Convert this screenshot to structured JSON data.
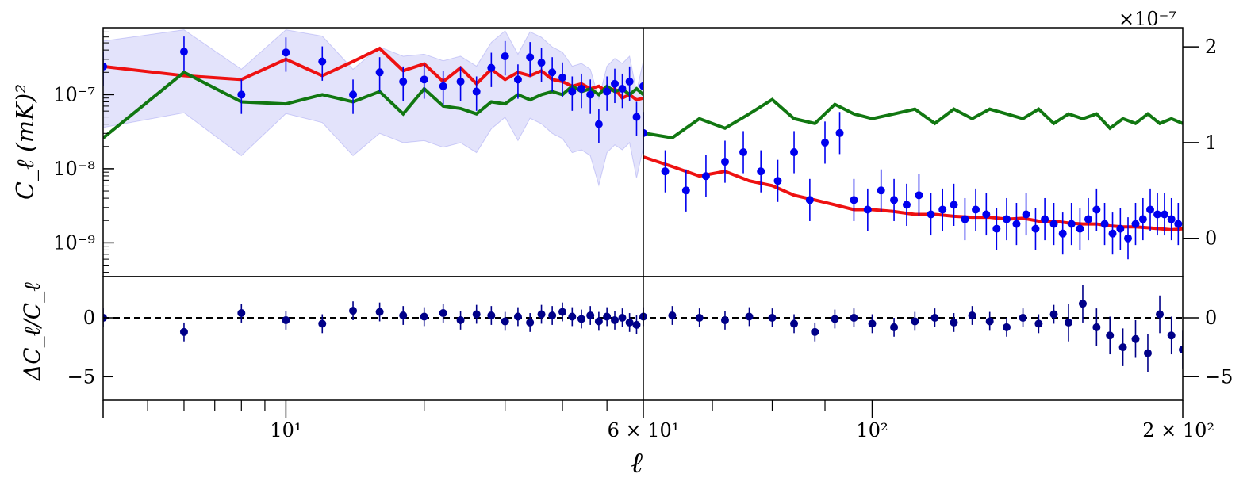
{
  "chart_data": [
    {
      "panel": "top-left",
      "type": "line",
      "yscale": "log",
      "xscale": "log",
      "ylabel": "C_ℓ (mK)²",
      "xlim": [
        4,
        60
      ],
      "ylim": [
        3.5e-10,
        8e-07
      ],
      "y_ticks": [
        {
          "value": 1e-09,
          "label": "10⁻⁹"
        },
        {
          "value": 1e-08,
          "label": "10⁻⁸"
        },
        {
          "value": 1e-07,
          "label": "10⁻⁷"
        }
      ],
      "band_color": "#8080ee",
      "series": [
        {
          "id": "red",
          "color": "#ee1111",
          "x": [
            4,
            6,
            8,
            10,
            12,
            14,
            16,
            18,
            20,
            22,
            24,
            26,
            28,
            30,
            32,
            34,
            36,
            38,
            40,
            42,
            44,
            46,
            48,
            50,
            52,
            54,
            56,
            58,
            60
          ],
          "y": [
            2.4e-07,
            1.8e-07,
            1.6e-07,
            3e-07,
            1.8e-07,
            2.8e-07,
            4.2e-07,
            2.1e-07,
            2.6e-07,
            1.5e-07,
            2.3e-07,
            1.4e-07,
            2.2e-07,
            1.6e-07,
            2e-07,
            1.8e-07,
            2.1e-07,
            1.6e-07,
            1.5e-07,
            1.3e-07,
            1.4e-07,
            1.2e-07,
            1.3e-07,
            1.1e-07,
            1.2e-07,
            9e-08,
            1e-07,
            8.5e-08,
            9e-08
          ]
        },
        {
          "id": "green",
          "color": "#117711",
          "x": [
            4,
            6,
            8,
            10,
            12,
            14,
            16,
            18,
            20,
            22,
            24,
            26,
            28,
            30,
            32,
            34,
            36,
            38,
            40,
            42,
            44,
            46,
            48,
            50,
            52,
            54,
            56,
            58,
            60
          ],
          "y": [
            2.6e-08,
            2e-07,
            8e-08,
            7.5e-08,
            1e-07,
            8e-08,
            1.1e-07,
            5.5e-08,
            1.2e-07,
            7e-08,
            6.5e-08,
            5.5e-08,
            8e-08,
            7.5e-08,
            1e-07,
            8.5e-08,
            1e-07,
            1.1e-07,
            1e-07,
            1.3e-07,
            1.1e-07,
            1.2e-07,
            1e-07,
            1.3e-07,
            1.1e-07,
            1.2e-07,
            1e-07,
            1.2e-07,
            1e-07
          ]
        },
        {
          "id": "data",
          "color": "#0000ee",
          "x": [
            4,
            6,
            8,
            10,
            12,
            14,
            16,
            18,
            20,
            22,
            24,
            26,
            28,
            30,
            32,
            34,
            36,
            38,
            40,
            42,
            44,
            46,
            48,
            50,
            52,
            54,
            56,
            58,
            60
          ],
          "y": [
            2.4e-07,
            3.8e-07,
            1e-07,
            3.7e-07,
            2.8e-07,
            1e-07,
            2e-07,
            1.5e-07,
            1.6e-07,
            1.3e-07,
            1.5e-07,
            1.1e-07,
            2.3e-07,
            3.3e-07,
            1.6e-07,
            3.2e-07,
            2.7e-07,
            2e-07,
            1.7e-07,
            1.1e-07,
            1.2e-07,
            1e-07,
            4e-08,
            1.1e-07,
            1.4e-07,
            1.2e-07,
            1.5e-07,
            5e-08,
            1.3e-07
          ]
        }
      ]
    },
    {
      "panel": "top-right",
      "type": "line",
      "yscale": "linear",
      "xscale": "log",
      "xlim": [
        60,
        200
      ],
      "ylim": [
        -4e-08,
        2.2e-07
      ],
      "y_multiplier": "×10⁻⁷",
      "y_ticks": [
        {
          "value": 0,
          "label": "0"
        },
        {
          "value": 1e-07,
          "label": "1"
        },
        {
          "value": 2e-07,
          "label": "2"
        }
      ],
      "series": [
        {
          "id": "green",
          "color": "#117711",
          "x": [
            60,
            64,
            68,
            72,
            76,
            80,
            84,
            88,
            92,
            96,
            100,
            105,
            110,
            115,
            120,
            125,
            130,
            135,
            140,
            145,
            150,
            155,
            160,
            165,
            170,
            175,
            180,
            185,
            190,
            195,
            200
          ],
          "y": [
            1.1e-07,
            1.05e-07,
            1.25e-07,
            1.15e-07,
            1.3e-07,
            1.45e-07,
            1.25e-07,
            1.2e-07,
            1.4e-07,
            1.3e-07,
            1.25e-07,
            1.3e-07,
            1.35e-07,
            1.2e-07,
            1.35e-07,
            1.25e-07,
            1.35e-07,
            1.3e-07,
            1.25e-07,
            1.35e-07,
            1.2e-07,
            1.3e-07,
            1.25e-07,
            1.3e-07,
            1.15e-07,
            1.25e-07,
            1.2e-07,
            1.3e-07,
            1.2e-07,
            1.25e-07,
            1.2e-07
          ]
        },
        {
          "id": "red",
          "color": "#ee1111",
          "x": [
            60,
            64,
            68,
            72,
            76,
            80,
            84,
            88,
            92,
            96,
            100,
            105,
            110,
            115,
            120,
            125,
            130,
            135,
            140,
            145,
            150,
            155,
            160,
            165,
            170,
            175,
            180,
            185,
            190,
            195,
            200
          ],
          "y": [
            8.5e-08,
            7.5e-08,
            6.5e-08,
            7e-08,
            6e-08,
            5.5e-08,
            4.5e-08,
            4e-08,
            3.5e-08,
            3e-08,
            3e-08,
            2.8e-08,
            2.5e-08,
            2.5e-08,
            2.3e-08,
            2.2e-08,
            2.2e-08,
            2e-08,
            2.1e-08,
            1.8e-08,
            1.8e-08,
            1.6e-08,
            1.5e-08,
            1.5e-08,
            1.3e-08,
            1.2e-08,
            1.2e-08,
            1.1e-08,
            1e-08,
            9e-09,
            1e-08
          ]
        },
        {
          "id": "data",
          "color": "#0000ee",
          "x": [
            60,
            63,
            66,
            69,
            72,
            75,
            78,
            81,
            84,
            87,
            90,
            93,
            96,
            99,
            102,
            105,
            108,
            111,
            114,
            117,
            120,
            123,
            126,
            129,
            132,
            135,
            138,
            141,
            144,
            147,
            150,
            153,
            156,
            159,
            162,
            165,
            168,
            171,
            174,
            177,
            180,
            183,
            186,
            189,
            192,
            195,
            198
          ],
          "y": [
            1.1e-07,
            7e-08,
            5e-08,
            6.5e-08,
            8e-08,
            9e-08,
            7e-08,
            6e-08,
            9e-08,
            4e-08,
            1e-07,
            1.1e-07,
            4e-08,
            3e-08,
            5e-08,
            4e-08,
            3.5e-08,
            4.5e-08,
            2.5e-08,
            3e-08,
            3.5e-08,
            2e-08,
            3e-08,
            2.5e-08,
            1e-08,
            2e-08,
            1.5e-08,
            2.5e-08,
            1e-08,
            2e-08,
            1.5e-08,
            5e-09,
            1.5e-08,
            1e-08,
            2e-08,
            3e-08,
            1.5e-08,
            5e-09,
            1e-08,
            0,
            1.5e-08,
            2e-08,
            3e-08,
            2.5e-08,
            2.5e-08,
            2e-08,
            1.5e-08
          ]
        }
      ]
    },
    {
      "panel": "bottom",
      "type": "scatter",
      "xscale": "log",
      "ylabel": "ΔC_ℓ/C_ℓ",
      "xlabel": "ℓ",
      "xlim": [
        4,
        200
      ],
      "ylim": [
        -7,
        3.5
      ],
      "y_ticks": [
        {
          "value": 0,
          "label": "0"
        },
        {
          "value": -5,
          "label": "−5"
        }
      ],
      "x_ticks": [
        {
          "value": 10,
          "label": "10¹"
        },
        {
          "value": 60,
          "label": "6 × 10¹"
        },
        {
          "value": 100,
          "label": "10²"
        },
        {
          "value": 200,
          "label": "2 × 10²"
        }
      ],
      "color": "#000088",
      "x": [
        4,
        6,
        8,
        10,
        12,
        14,
        16,
        18,
        20,
        22,
        24,
        26,
        28,
        30,
        32,
        34,
        36,
        38,
        40,
        42,
        44,
        46,
        48,
        50,
        52,
        54,
        56,
        58,
        60,
        64,
        68,
        72,
        76,
        80,
        84,
        88,
        92,
        96,
        100,
        105,
        110,
        115,
        120,
        125,
        130,
        135,
        140,
        145,
        150,
        155,
        160,
        165,
        170,
        175,
        180,
        185,
        190,
        195,
        200
      ],
      "y": [
        0,
        -1.2,
        0.4,
        -0.2,
        -0.5,
        0.6,
        0.5,
        0.2,
        0.1,
        0.4,
        -0.2,
        0.3,
        0.2,
        -0.3,
        0.1,
        -0.4,
        0.3,
        0.2,
        0.5,
        0.1,
        -0.1,
        0.2,
        -0.3,
        0.1,
        -0.2,
        0.0,
        -0.4,
        -0.6,
        0.1,
        0.2,
        0.0,
        -0.2,
        0.1,
        0.0,
        -0.5,
        -1.2,
        -0.1,
        0.0,
        -0.5,
        -0.8,
        -0.3,
        0.0,
        -0.4,
        0.2,
        -0.3,
        -0.8,
        0.0,
        -0.5,
        0.3,
        -0.4,
        1.2,
        -0.8,
        -1.5,
        -2.5,
        -1.8,
        -3.0,
        0.3,
        -1.5,
        -2.7
      ]
    }
  ],
  "multiplier_label": "×10⁻⁷",
  "ylabel_top": "C_ℓ (mK)²",
  "ylabel_bottom": "ΔC_ℓ/C_ℓ",
  "xlabel": "ℓ"
}
